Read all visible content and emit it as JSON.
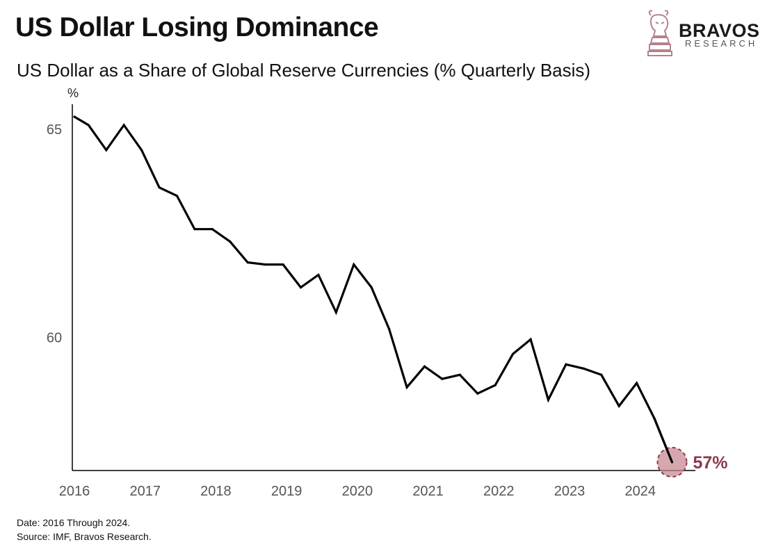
{
  "header": {
    "title": "US Dollar Losing Dominance",
    "subtitle": "US Dollar as a Share of Global Reserve Currencies (% Quarterly Basis)"
  },
  "logo": {
    "word": "BRAVOS",
    "sub": "RESEARCH",
    "icon": "bull-knight-chess-icon"
  },
  "footer": {
    "date_note": "Date: 2016 Through 2024.",
    "source_note": "Source: IMF, Bravos Research."
  },
  "colors": {
    "line": "#000000",
    "highlight": "#8b3a4c",
    "highlight_fill": "#c98a96"
  },
  "chart_data": {
    "type": "line",
    "title": "US Dollar as a Share of Global Reserve Currencies (% Quarterly Basis)",
    "xlabel": "",
    "ylabel": "%",
    "ylim": [
      57,
      65.3
    ],
    "xlim": [
      2016,
      2024.75
    ],
    "x_ticks": [
      "2016",
      "2017",
      "2018",
      "2019",
      "2020",
      "2021",
      "2022",
      "2023",
      "2024"
    ],
    "y_ticks": [
      "60",
      "65"
    ],
    "grid": false,
    "series": [
      {
        "values_x": [
          2016.0,
          2016.2,
          2016.45,
          2016.7,
          2016.95,
          2017.2,
          2017.45,
          2017.7,
          2017.95,
          2018.2,
          2018.45,
          2018.7,
          2018.95,
          2019.2,
          2019.45,
          2019.7,
          2019.95,
          2020.2,
          2020.45,
          2020.7,
          2020.95,
          2021.2,
          2021.45,
          2021.7,
          2021.95,
          2022.2,
          2022.45,
          2022.7,
          2022.95,
          2023.2,
          2023.45,
          2023.7,
          2023.95,
          2024.2,
          2024.45
        ],
        "values_y": [
          65.3,
          65.1,
          64.5,
          65.1,
          64.5,
          63.6,
          63.4,
          62.6,
          62.6,
          62.3,
          61.8,
          61.75,
          61.75,
          61.2,
          61.5,
          60.6,
          61.75,
          61.2,
          60.2,
          58.8,
          59.3,
          59.0,
          59.1,
          58.65,
          58.85,
          59.6,
          59.95,
          58.5,
          59.35,
          59.25,
          59.1,
          58.35,
          58.9,
          58.05,
          57.0
        ]
      }
    ],
    "annotations": [
      {
        "x": 2024.45,
        "y": 57.0,
        "text": "57%"
      }
    ]
  }
}
